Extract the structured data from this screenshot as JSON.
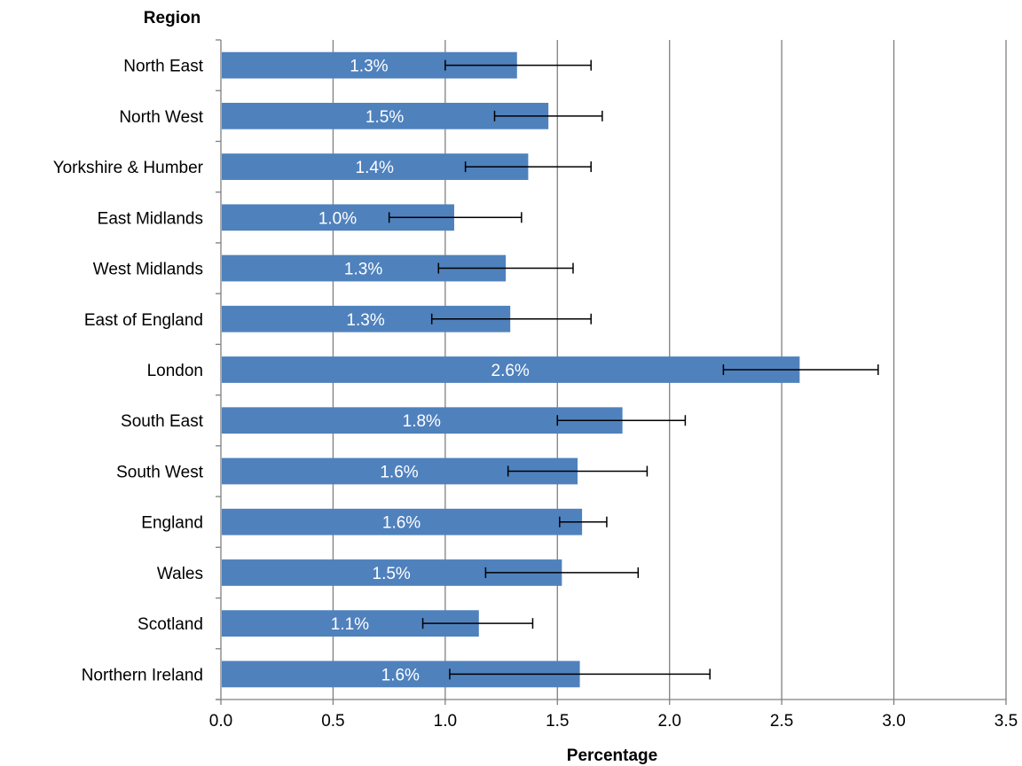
{
  "chart_data": {
    "type": "bar",
    "orientation": "horizontal",
    "title": "",
    "ylabel": "Region",
    "xlabel": "Percentage",
    "xlim": [
      0,
      3.5
    ],
    "xticks": [
      0,
      0.5,
      1,
      1.5,
      2,
      2.5,
      3,
      3.5
    ],
    "xtick_labels": [
      "0.0",
      "0.5",
      "1.0",
      "1.5",
      "2.0",
      "2.5",
      "3.0",
      "3.5"
    ],
    "grid": "vertical",
    "legend": "none",
    "bar_color": "#4f81bd",
    "error_bar_color": "#000000",
    "gridline_color": "#808080",
    "categories": [
      "North East",
      "North West",
      "Yorkshire & Humber",
      "East Midlands",
      "West Midlands",
      "East of England",
      "London",
      "South East",
      "South West",
      "England",
      "Wales",
      "Scotland",
      "Northern Ireland"
    ],
    "values": [
      1.32,
      1.46,
      1.37,
      1.04,
      1.27,
      1.29,
      2.58,
      1.79,
      1.59,
      1.61,
      1.52,
      1.15,
      1.6
    ],
    "error_low": [
      1.0,
      1.22,
      1.09,
      0.75,
      0.97,
      0.94,
      2.24,
      1.5,
      1.28,
      1.51,
      1.18,
      0.9,
      1.02
    ],
    "error_high": [
      1.65,
      1.7,
      1.65,
      1.34,
      1.57,
      1.65,
      2.93,
      2.07,
      1.9,
      1.72,
      1.86,
      1.39,
      2.18
    ],
    "data_labels": [
      "1.3%",
      "1.5%",
      "1.4%",
      "1.0%",
      "1.3%",
      "1.3%",
      "2.6%",
      "1.8%",
      "1.6%",
      "1.6%",
      "1.5%",
      "1.1%",
      "1.6%"
    ]
  }
}
